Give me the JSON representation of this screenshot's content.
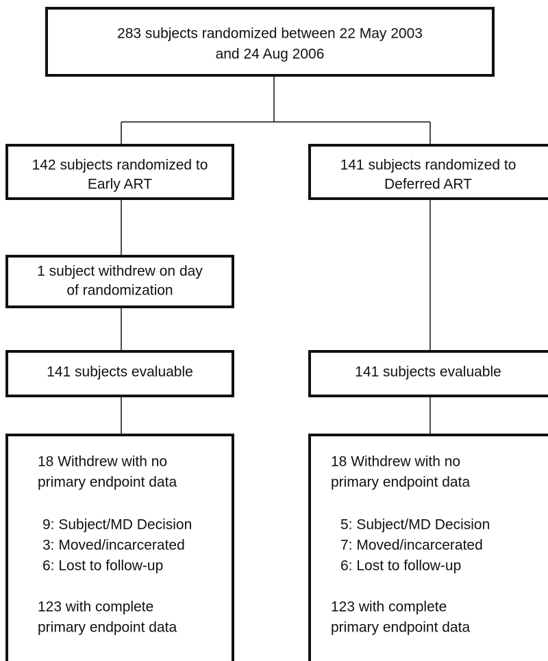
{
  "nodes": [
    {
      "lines": [
        "283 subjects randomized between 22 May 2003",
        "and 24 Aug 2006"
      ]
    },
    {
      "lines": [
        "142 subjects randomized to",
        "Early ART"
      ]
    },
    {
      "lines": [
        "141 subjects randomized to",
        "Deferred ART"
      ]
    },
    {
      "lines": [
        "1 subject withdrew on day",
        "of randomization"
      ]
    },
    {
      "lines": [
        "141 subjects evaluable"
      ]
    },
    {
      "lines": [
        "141 subjects evaluable"
      ]
    },
    {
      "lines": [
        "18 Withdrew with no",
        "primary endpoint data",
        "9: Subject/MD Decision",
        "3: Moved/incarcerated",
        "6: Lost to follow-up",
        "123 with complete",
        "primary endpoint data"
      ]
    },
    {
      "lines": [
        "18 Withdrew with no",
        "primary endpoint data",
        "5: Subject/MD Decision",
        "7: Moved/incarcerated",
        "6: Lost to follow-up",
        "123 with complete",
        "primary endpoint data"
      ]
    }
  ]
}
